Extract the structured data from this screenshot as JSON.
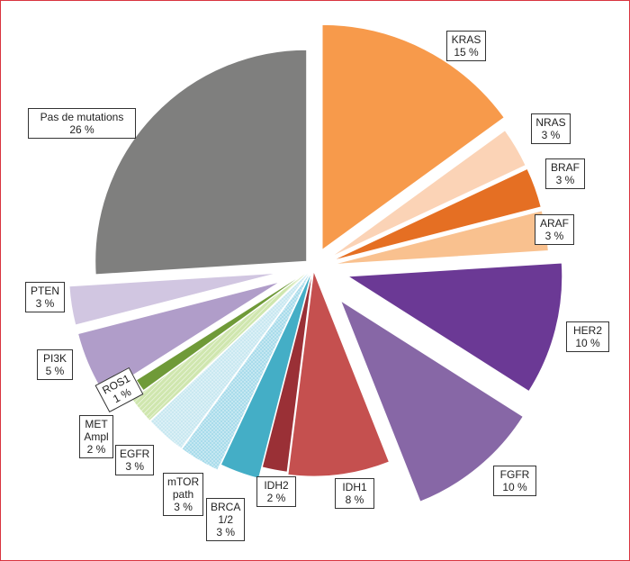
{
  "chart_data": {
    "type": "pie",
    "exploded": true,
    "slices": [
      {
        "key": "kras",
        "lines": [
          "KRAS",
          "15 %"
        ],
        "value": 15,
        "color": "#F79A4B",
        "pattern": null
      },
      {
        "key": "nras",
        "lines": [
          "NRAS",
          "3 %"
        ],
        "value": 3,
        "color": "#FBD3B6",
        "pattern": null
      },
      {
        "key": "braf",
        "lines": [
          "BRAF",
          "3 %"
        ],
        "value": 3,
        "color": "#E56F23",
        "pattern": null
      },
      {
        "key": "araf",
        "lines": [
          "ARAF",
          "3 %"
        ],
        "value": 3,
        "color": "#F9C18F",
        "pattern": null
      },
      {
        "key": "her2",
        "lines": [
          "HER2",
          "10 %"
        ],
        "value": 10,
        "color": "#6B3995",
        "pattern": null
      },
      {
        "key": "fgfr",
        "lines": [
          "FGFR",
          "10 %"
        ],
        "value": 10,
        "color": "#8767A6",
        "pattern": null
      },
      {
        "key": "idh1",
        "lines": [
          "IDH1",
          "8 %"
        ],
        "value": 8,
        "color": "#C5504F",
        "pattern": null
      },
      {
        "key": "idh2",
        "lines": [
          "IDH2",
          "2 %"
        ],
        "value": 2,
        "color": "#9A3036",
        "pattern": null
      },
      {
        "key": "brca",
        "lines": [
          "BRCA",
          "1/2",
          "3 %"
        ],
        "value": 3,
        "color": "#44AEC6",
        "pattern": null
      },
      {
        "key": "mtor",
        "lines": [
          "mTOR",
          "path",
          "3 %"
        ],
        "value": 3,
        "color": "#A9DCEB",
        "pattern": "dots"
      },
      {
        "key": "egfr",
        "lines": [
          "EGFR",
          "3 %"
        ],
        "value": 3,
        "color": "#C9E8F1",
        "pattern": "dots"
      },
      {
        "key": "met",
        "lines": [
          "MET",
          "Ampl",
          "2 %"
        ],
        "value": 2,
        "color": "#CFE6AE",
        "pattern": "hatch"
      },
      {
        "key": "ros1",
        "lines": [
          "ROS1",
          "1 %"
        ],
        "value": 1,
        "color": "#6F9A38",
        "pattern": null
      },
      {
        "key": "pi3k",
        "lines": [
          "PI3K",
          "5 %"
        ],
        "value": 5,
        "color": "#B09DC9",
        "pattern": null
      },
      {
        "key": "pten",
        "lines": [
          "PTEN",
          "3 %"
        ],
        "value": 3,
        "color": "#D1C6E1",
        "pattern": null
      },
      {
        "key": "none",
        "lines": [
          "Pas de mutations",
          "26 %"
        ],
        "value": 26,
        "color": "#7F7F7E",
        "pattern": null
      }
    ]
  }
}
